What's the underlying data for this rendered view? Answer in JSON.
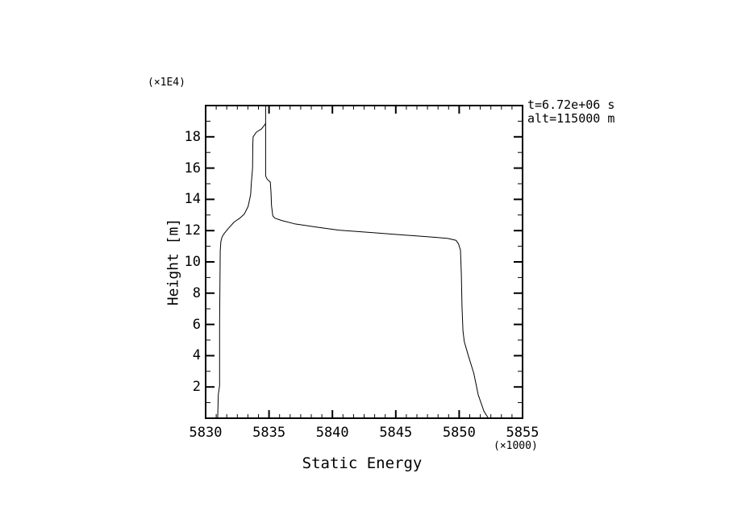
{
  "chart_data": {
    "type": "line",
    "title": "",
    "xlabel": "Static Energy",
    "ylabel": "Height [m]",
    "x_unit_label": "(×1000)",
    "y_unit_label": "(×1E4)",
    "xlim": [
      5830,
      5855
    ],
    "ylim": [
      0,
      20
    ],
    "x_major_ticks": [
      5830,
      5835,
      5840,
      5845,
      5850,
      5855
    ],
    "x_tick_labels": [
      "5830",
      "5835",
      "5840",
      "5845",
      "5850",
      "5855"
    ],
    "x_minor_divisions": 6,
    "y_major_ticks": [
      2,
      4,
      6,
      8,
      10,
      12,
      14,
      16,
      18
    ],
    "y_tick_labels": [
      "2",
      "4",
      "6",
      "8",
      "10",
      "12",
      "14",
      "16",
      "18"
    ],
    "y_minor_ticks": [
      1,
      3,
      5,
      7,
      9,
      11,
      13,
      15,
      17,
      19
    ],
    "grid": false,
    "legend": "none",
    "line_color": "#000000",
    "axis_color": "#000000",
    "background": "#ffffff",
    "annotations": [
      "t=6.72e+06 s",
      "alt=115000 m"
    ],
    "series": [
      {
        "name": "curve-left",
        "points": [
          [
            5830.95,
            0.0
          ],
          [
            5831.0,
            1.5
          ],
          [
            5831.1,
            2.1
          ],
          [
            5831.1,
            6.0
          ],
          [
            5831.15,
            10.7
          ],
          [
            5831.2,
            11.3
          ],
          [
            5831.3,
            11.6
          ],
          [
            5831.45,
            11.8
          ],
          [
            5831.8,
            12.15
          ],
          [
            5832.25,
            12.55
          ],
          [
            5832.7,
            12.8
          ],
          [
            5833.05,
            13.05
          ],
          [
            5833.35,
            13.55
          ],
          [
            5833.55,
            14.3
          ],
          [
            5833.6,
            15.0
          ],
          [
            5833.7,
            16.0
          ],
          [
            5833.72,
            17.5
          ],
          [
            5833.75,
            18.0
          ],
          [
            5834.0,
            18.3
          ],
          [
            5834.4,
            18.5
          ],
          [
            5834.73,
            18.85
          ]
        ]
      },
      {
        "name": "curve-main",
        "points": [
          [
            5834.73,
            20.0
          ],
          [
            5834.73,
            15.5
          ],
          [
            5834.85,
            15.3
          ],
          [
            5835.1,
            15.1
          ],
          [
            5835.15,
            14.5
          ],
          [
            5835.2,
            13.6
          ],
          [
            5835.3,
            12.95
          ],
          [
            5835.45,
            12.8
          ],
          [
            5836.0,
            12.65
          ],
          [
            5837.0,
            12.44
          ],
          [
            5838.6,
            12.24
          ],
          [
            5840.5,
            12.03
          ],
          [
            5843.0,
            11.88
          ],
          [
            5845.6,
            11.72
          ],
          [
            5848.1,
            11.57
          ],
          [
            5849.1,
            11.5
          ],
          [
            5849.75,
            11.38
          ],
          [
            5849.95,
            11.15
          ],
          [
            5850.1,
            10.75
          ],
          [
            5850.17,
            9.2
          ],
          [
            5850.22,
            7.15
          ],
          [
            5850.3,
            5.6
          ],
          [
            5850.4,
            4.9
          ],
          [
            5850.7,
            4.06
          ],
          [
            5851.15,
            2.88
          ],
          [
            5851.5,
            1.5
          ],
          [
            5851.95,
            0.45
          ],
          [
            5852.3,
            0.0
          ]
        ]
      }
    ]
  }
}
